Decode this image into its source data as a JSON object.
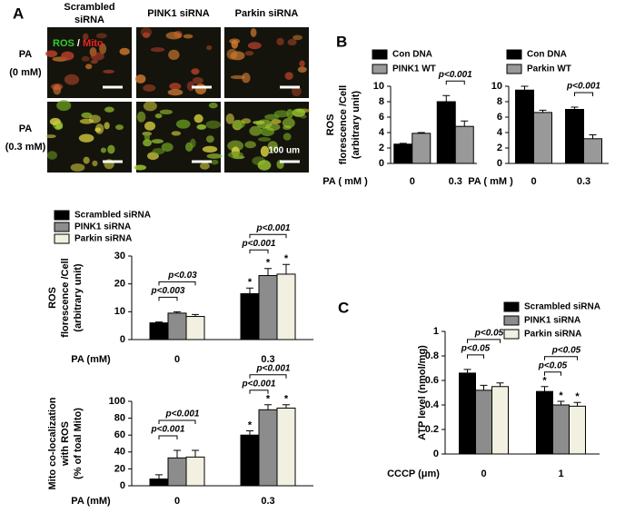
{
  "figure": {
    "panels": [
      "A",
      "B",
      "C"
    ],
    "columns": [
      [
        "Scrambled",
        "siRNA"
      ],
      [
        "PINK1 siRNA"
      ],
      [
        "Parkin siRNA"
      ]
    ],
    "rows": [
      [
        "PA",
        "(0 mM)"
      ],
      [
        "PA",
        "(0.3 mM)"
      ]
    ],
    "stain": [
      "ROS",
      "/",
      "Mito"
    ],
    "scale_bar": "100 um"
  },
  "chart_data": [
    {
      "type": "bar",
      "ylabel": [
        "ROS",
        "florescence /Cell",
        "(arbitrary unit)"
      ],
      "xlabel": "PA (mM)",
      "categories": [
        "0",
        "0.3"
      ],
      "ylim": [
        0,
        30
      ],
      "yticks": [
        0,
        10,
        20,
        30
      ],
      "legend": true,
      "series": [
        {
          "name": "Scrambled  siRNA",
          "color": "#000000",
          "values": [
            6,
            16.5
          ],
          "errors": [
            0.3,
            2
          ],
          "significance": [
            null,
            "*"
          ]
        },
        {
          "name": "PINK1 siRNA",
          "color": "#8c8c8c",
          "values": [
            9.5,
            23
          ],
          "errors": [
            0.5,
            2.5
          ],
          "significance": [
            null,
            "*"
          ]
        },
        {
          "name": "Parkin siRNA",
          "color": "#f2f0e0",
          "values": [
            8.3,
            23.5
          ],
          "errors": [
            0.7,
            3.5
          ],
          "significance": [
            null,
            "*"
          ]
        }
      ],
      "comparisons": [
        [
          "p<0.003",
          "p<0.03"
        ],
        [
          "p<0.001",
          "p<0.001"
        ]
      ]
    },
    {
      "type": "bar",
      "ylabel": [
        "Mito co-localization",
        "with ROS",
        "(% of toal Mito)"
      ],
      "xlabel": "PA (mM)",
      "categories": [
        "0",
        "0.3"
      ],
      "ylim": [
        0,
        100
      ],
      "yticks": [
        0,
        20,
        40,
        60,
        80,
        100
      ],
      "legend": false,
      "series": [
        {
          "color": "#000000",
          "values": [
            8,
            60
          ],
          "errors": [
            5,
            5
          ],
          "significance": [
            null,
            "*"
          ]
        },
        {
          "color": "#8c8c8c",
          "values": [
            33,
            90
          ],
          "errors": [
            9,
            6
          ],
          "significance": [
            null,
            "*"
          ]
        },
        {
          "color": "#f2f0e0",
          "values": [
            34,
            92
          ],
          "errors": [
            8,
            4
          ],
          "significance": [
            null,
            "*"
          ]
        }
      ],
      "comparisons": [
        [
          "p<0.001",
          "p<0.001"
        ],
        [
          "p<0.001",
          "p<0.001"
        ]
      ]
    },
    {
      "type": "bar",
      "ylabel": [
        "ROS",
        "florescence /Cell",
        "(arbitrary unit)"
      ],
      "xlabel": "PA ( mM )",
      "categories": [
        "0",
        "0.3"
      ],
      "ylim": [
        0,
        10
      ],
      "yticks": [
        0,
        2,
        4,
        6,
        8,
        10
      ],
      "legend": true,
      "series": [
        {
          "name": "Con DNA",
          "color": "#000000",
          "values": [
            2.5,
            8
          ],
          "errors": [
            0.1,
            0.8
          ]
        },
        {
          "name": "PINK1 WT",
          "color": "#999999",
          "values": [
            3.9,
            4.8
          ],
          "errors": [
            0.1,
            0.7
          ]
        }
      ],
      "comparisons": [
        [],
        [
          "p<0.001"
        ]
      ]
    },
    {
      "type": "bar",
      "xlabel": "PA ( mM )",
      "categories": [
        "0",
        "0.3"
      ],
      "ylim": [
        0,
        10
      ],
      "yticks": [
        0,
        2,
        4,
        6,
        8,
        10
      ],
      "legend": true,
      "series": [
        {
          "name": "Con DNA",
          "color": "#000000",
          "values": [
            9.5,
            7
          ],
          "errors": [
            0.5,
            0.3
          ]
        },
        {
          "name": "Parkin WT",
          "color": "#999999",
          "values": [
            6.6,
            3.2
          ],
          "errors": [
            0.3,
            0.5
          ]
        }
      ],
      "comparisons": [
        [],
        [
          "p<0.001"
        ]
      ]
    },
    {
      "type": "bar",
      "ylabel": [
        "ATP level (nmol/mg)"
      ],
      "xlabel": "CCCP (μm)",
      "categories": [
        "0",
        "1"
      ],
      "ylim": [
        0,
        1
      ],
      "yticks": [
        0,
        0.2,
        0.4,
        0.6,
        0.8,
        1
      ],
      "legend": true,
      "series": [
        {
          "name": "Scrambled  siRNA",
          "color": "#000000",
          "values": [
            0.66,
            0.51
          ],
          "errors": [
            0.03,
            0.04
          ],
          "significance": [
            null,
            "*"
          ]
        },
        {
          "name": "PINK1 siRNA",
          "color": "#8c8c8c",
          "values": [
            0.52,
            0.4
          ],
          "errors": [
            0.04,
            0.03
          ],
          "significance": [
            null,
            "*"
          ]
        },
        {
          "name": "Parkin siRNA",
          "color": "#f2f0e0",
          "values": [
            0.55,
            0.39
          ],
          "errors": [
            0.03,
            0.03
          ],
          "significance": [
            null,
            "*"
          ]
        }
      ],
      "comparisons": [
        [
          "p<0.05",
          "p<0.05"
        ],
        [
          "p<0.05",
          "p<0.05"
        ]
      ]
    }
  ]
}
